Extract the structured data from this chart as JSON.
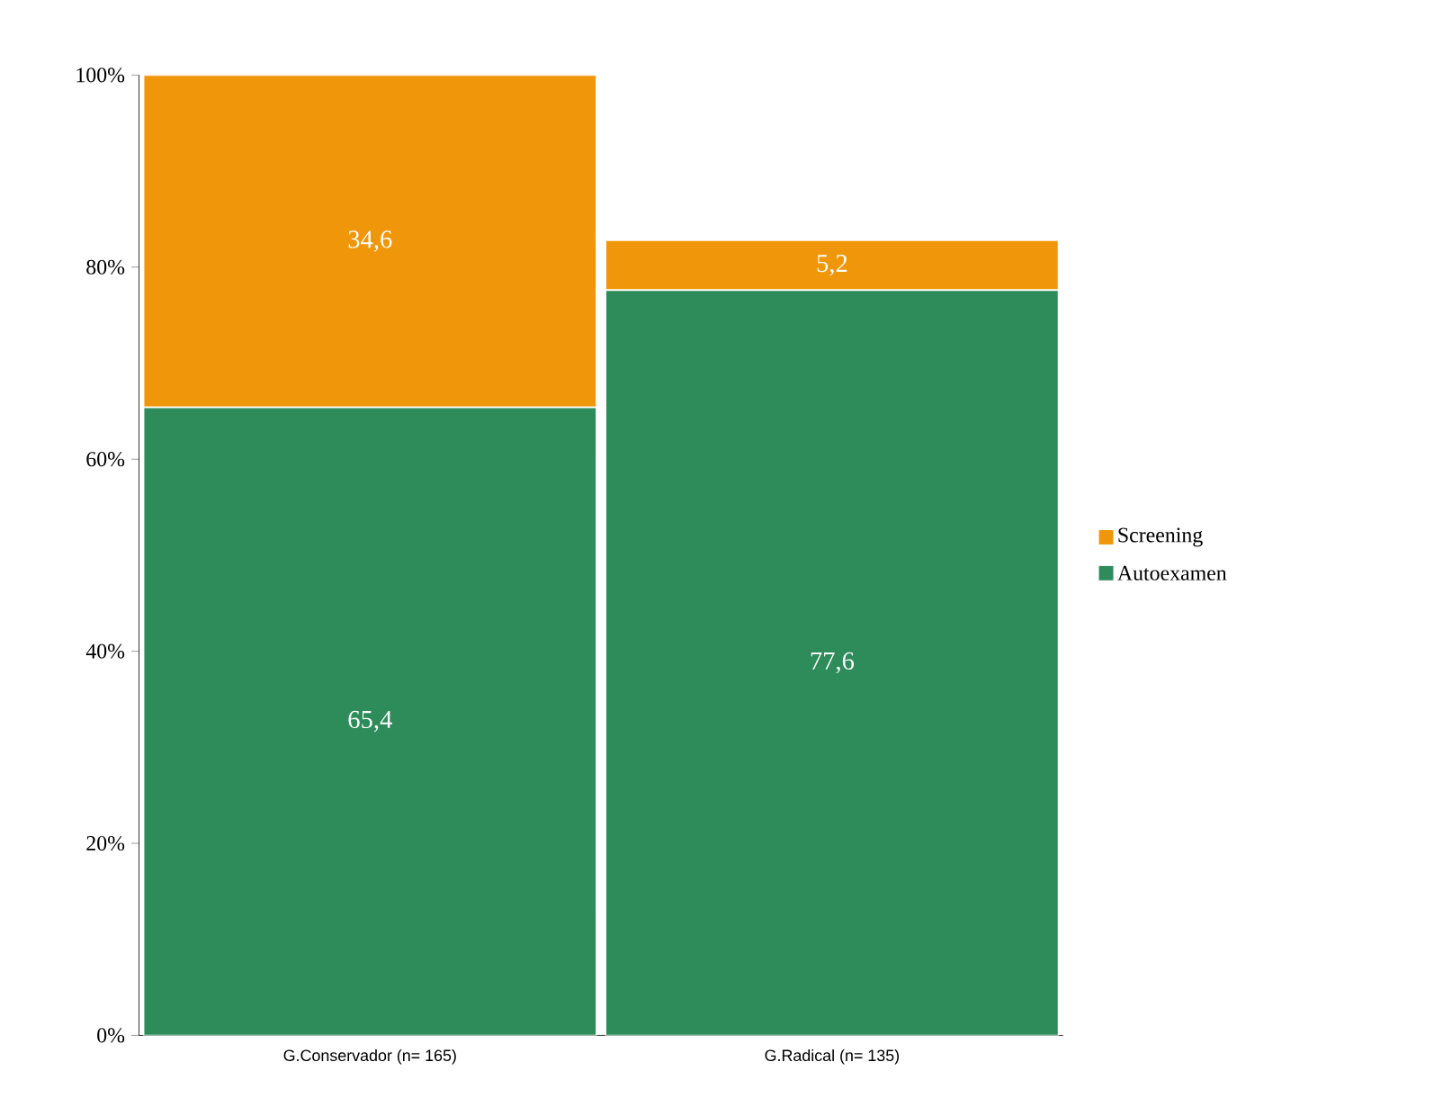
{
  "chart_data": {
    "type": "bar",
    "stacked": true,
    "categories": [
      "G.Conservador (n= 165)",
      "G.Radical (n= 135)"
    ],
    "series": [
      {
        "name": "Autoexamen",
        "color": "#2e8b5a",
        "values": [
          65.4,
          77.6
        ],
        "value_labels": [
          "65,4",
          "77,6"
        ]
      },
      {
        "name": "Screening",
        "color": "#f0960a",
        "values": [
          34.6,
          5.2
        ],
        "value_labels": [
          "34,6",
          "5,2"
        ]
      }
    ],
    "ylim": [
      0,
      100
    ],
    "yticks": [
      {
        "value": 0,
        "label": "0%"
      },
      {
        "value": 20,
        "label": "20%"
      },
      {
        "value": 40,
        "label": "40%"
      },
      {
        "value": 60,
        "label": "60%"
      },
      {
        "value": 80,
        "label": "80%"
      },
      {
        "value": 100,
        "label": "100%"
      }
    ],
    "legend": "right"
  }
}
